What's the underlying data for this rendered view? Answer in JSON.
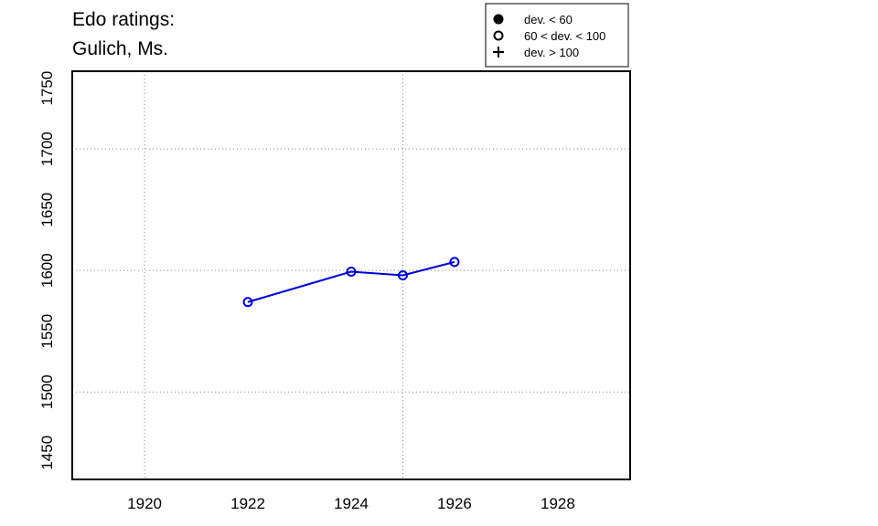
{
  "chart_data": {
    "type": "line",
    "title": [
      "Edo ratings:",
      "Gulich, Ms."
    ],
    "x": [
      1922,
      1924,
      1925,
      1926
    ],
    "series": [
      {
        "name": "Gulich, Ms.",
        "color": "#0000dd",
        "marker": "open-circle",
        "values": [
          1574,
          1599,
          1596,
          1607
        ]
      }
    ],
    "xlim": [
      1918.6,
      1929.4
    ],
    "xticks": [
      1920,
      1922,
      1924,
      1926,
      1928
    ],
    "ylim": [
      1428,
      1764
    ],
    "yticks": [
      1450,
      1500,
      1550,
      1600,
      1650,
      1700,
      1750
    ],
    "xgrid": [
      1920,
      1925
    ],
    "ygrid": [
      1500,
      1600,
      1700
    ],
    "legend_position": "top-right",
    "legend": [
      {
        "label": "dev. < 60",
        "marker": "filled-circle"
      },
      {
        "label": "60 < dev. < 100",
        "marker": "open-circle"
      },
      {
        "label": "dev. > 100",
        "marker": "plus"
      }
    ]
  }
}
